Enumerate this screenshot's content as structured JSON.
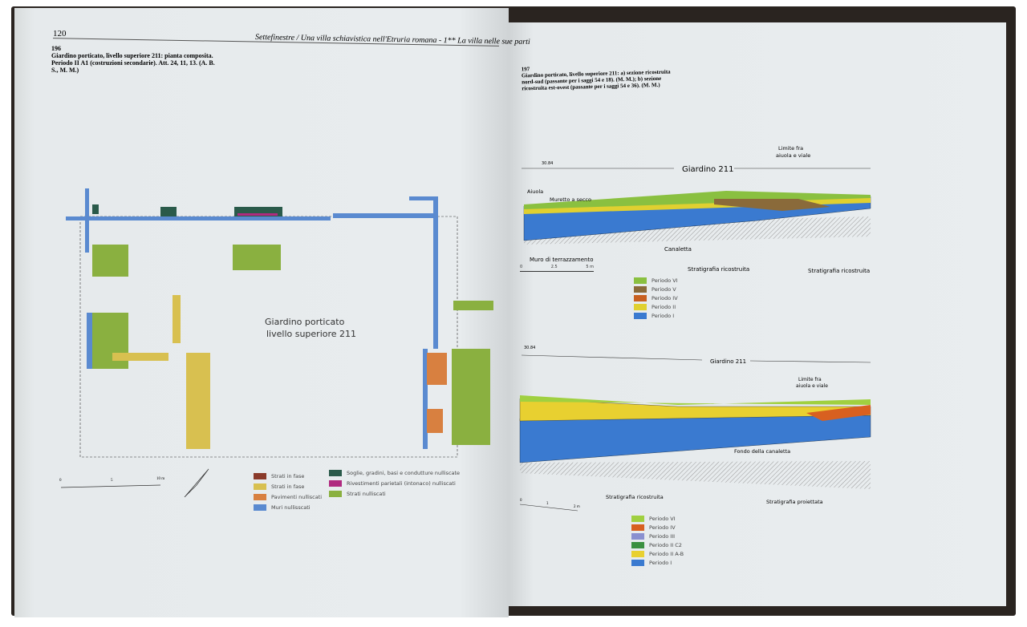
{
  "left_page": {
    "page_number": "120",
    "running_head": "Settefinestre / Una villa schiavistica nell'Etruria romana - 1** La villa nelle sue parti",
    "figure_number": "196",
    "caption": [
      "Giardino porticato, livello superiore 211: pianta composita.",
      "Periodo II A1 (costruzioni secondarie). Att. 24, 11, 13. (A. B.",
      "S., M. M.)"
    ],
    "plan_label": [
      "Giardino porticato",
      "livello superiore 211"
    ],
    "scale_labels": [
      "0",
      "5",
      "10 m"
    ],
    "legend": [
      {
        "label": "Strati in fase",
        "color": "#8a3a2a"
      },
      {
        "label": "Strati in fase",
        "color": "#d8c050"
      },
      {
        "label": "Pavimenti nulliscati",
        "color": "#d88040"
      },
      {
        "label": "Muri nullisscati",
        "color": "#5a8ad0"
      },
      {
        "label": "Soglie, gradini, basi e condutture nulliscate",
        "color": "#2a5a4a"
      },
      {
        "label": "Rivestimenti parietali (intonaco) nulliscati",
        "color": "#b02a80"
      },
      {
        "label": "Strati nulliscati",
        "color": "#8ab040"
      }
    ]
  },
  "right_page": {
    "figure_number": "197",
    "caption": [
      "Giardino porticato, livello superiore 211: a) sezione ricostruita",
      "nord-sud (passante per i saggi 54 e 18). (M. M.); b) sezione",
      "ricostruita est-ovest (passante per i saggi 54 e 36). (M. M.)"
    ],
    "section_a": {
      "elevation": "30.84",
      "title": "Giardino 211",
      "labels": {
        "aiuola": "Aiuola",
        "muretto": "Muretto a secco",
        "canaletta": "Canaletta",
        "muro": "Muro di terrazzamento",
        "limite": [
          "Limite fra",
          "aiuola e viale"
        ],
        "strat1": "Stratigrafia ricostruita",
        "strat2": "Stratigrafia ricostruita"
      },
      "scale_labels": [
        "0",
        "2.5",
        "5 m"
      ],
      "legend": [
        {
          "label": "Periodo VI",
          "color": "#8ac040"
        },
        {
          "label": "Periodo V",
          "color": "#8a6a3a"
        },
        {
          "label": "Periodo IV",
          "color": "#c86020"
        },
        {
          "label": "Periodo II",
          "color": "#e0d030"
        },
        {
          "label": "Periodo I",
          "color": "#3a7ad0"
        }
      ]
    },
    "section_b": {
      "elevation": "30.84",
      "title": "Giardino 211",
      "labels": {
        "limite": [
          "Limite fra",
          "aiuola e viale"
        ],
        "fondo": "Fondo della canaletta",
        "strat1": "Stratigrafia ricostruita",
        "strat2": "Stratigrafia proiettata"
      },
      "scale_labels": [
        "0",
        "1",
        "2 m"
      ],
      "legend": [
        {
          "label": "Periodo VI",
          "color": "#a0d040"
        },
        {
          "label": "Periodo IV",
          "color": "#d86020"
        },
        {
          "label": "Periodo III",
          "color": "#8a90d0"
        },
        {
          "label": "Periodo II C2",
          "color": "#3a9040"
        },
        {
          "label": "Periodo II A-B",
          "color": "#e8d030"
        },
        {
          "label": "Periodo I",
          "color": "#3a7ad0"
        }
      ]
    }
  }
}
